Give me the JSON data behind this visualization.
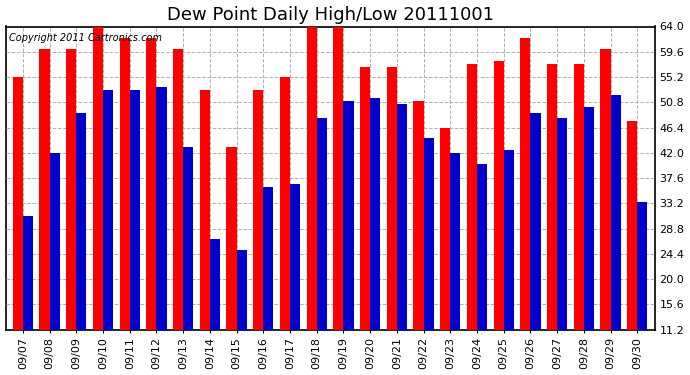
{
  "title": "Dew Point Daily High/Low 20111001",
  "copyright": "Copyright 2011 Cartronics.com",
  "dates": [
    "09/07",
    "09/08",
    "09/09",
    "09/10",
    "09/11",
    "09/12",
    "09/13",
    "09/14",
    "09/15",
    "09/16",
    "09/17",
    "09/18",
    "09/19",
    "09/20",
    "09/21",
    "09/22",
    "09/23",
    "09/24",
    "09/25",
    "09/26",
    "09/27",
    "09/28",
    "09/29",
    "09/30"
  ],
  "highs": [
    55.2,
    60.0,
    60.0,
    64.0,
    62.0,
    62.0,
    60.0,
    53.0,
    43.0,
    53.0,
    55.2,
    64.0,
    64.0,
    57.0,
    57.0,
    51.0,
    46.4,
    57.5,
    58.0,
    62.0,
    57.5,
    57.5,
    60.0,
    47.5
  ],
  "lows": [
    31.0,
    42.0,
    49.0,
    53.0,
    53.0,
    53.5,
    43.0,
    27.0,
    25.0,
    36.0,
    36.5,
    48.0,
    51.0,
    51.5,
    50.5,
    44.5,
    42.0,
    40.0,
    42.5,
    49.0,
    48.0,
    50.0,
    52.0,
    33.5
  ],
  "high_color": "#ff0000",
  "low_color": "#0000cc",
  "bg_color": "#ffffff",
  "plot_bg_color": "#ffffff",
  "grid_color": "#b0b0b0",
  "ymin": 11.2,
  "ymax": 64.0,
  "yticks": [
    11.2,
    15.6,
    20.0,
    24.4,
    28.8,
    33.2,
    37.6,
    42.0,
    46.4,
    50.8,
    55.2,
    59.6,
    64.0
  ],
  "title_fontsize": 13,
  "copyright_fontsize": 7,
  "tick_fontsize": 8
}
